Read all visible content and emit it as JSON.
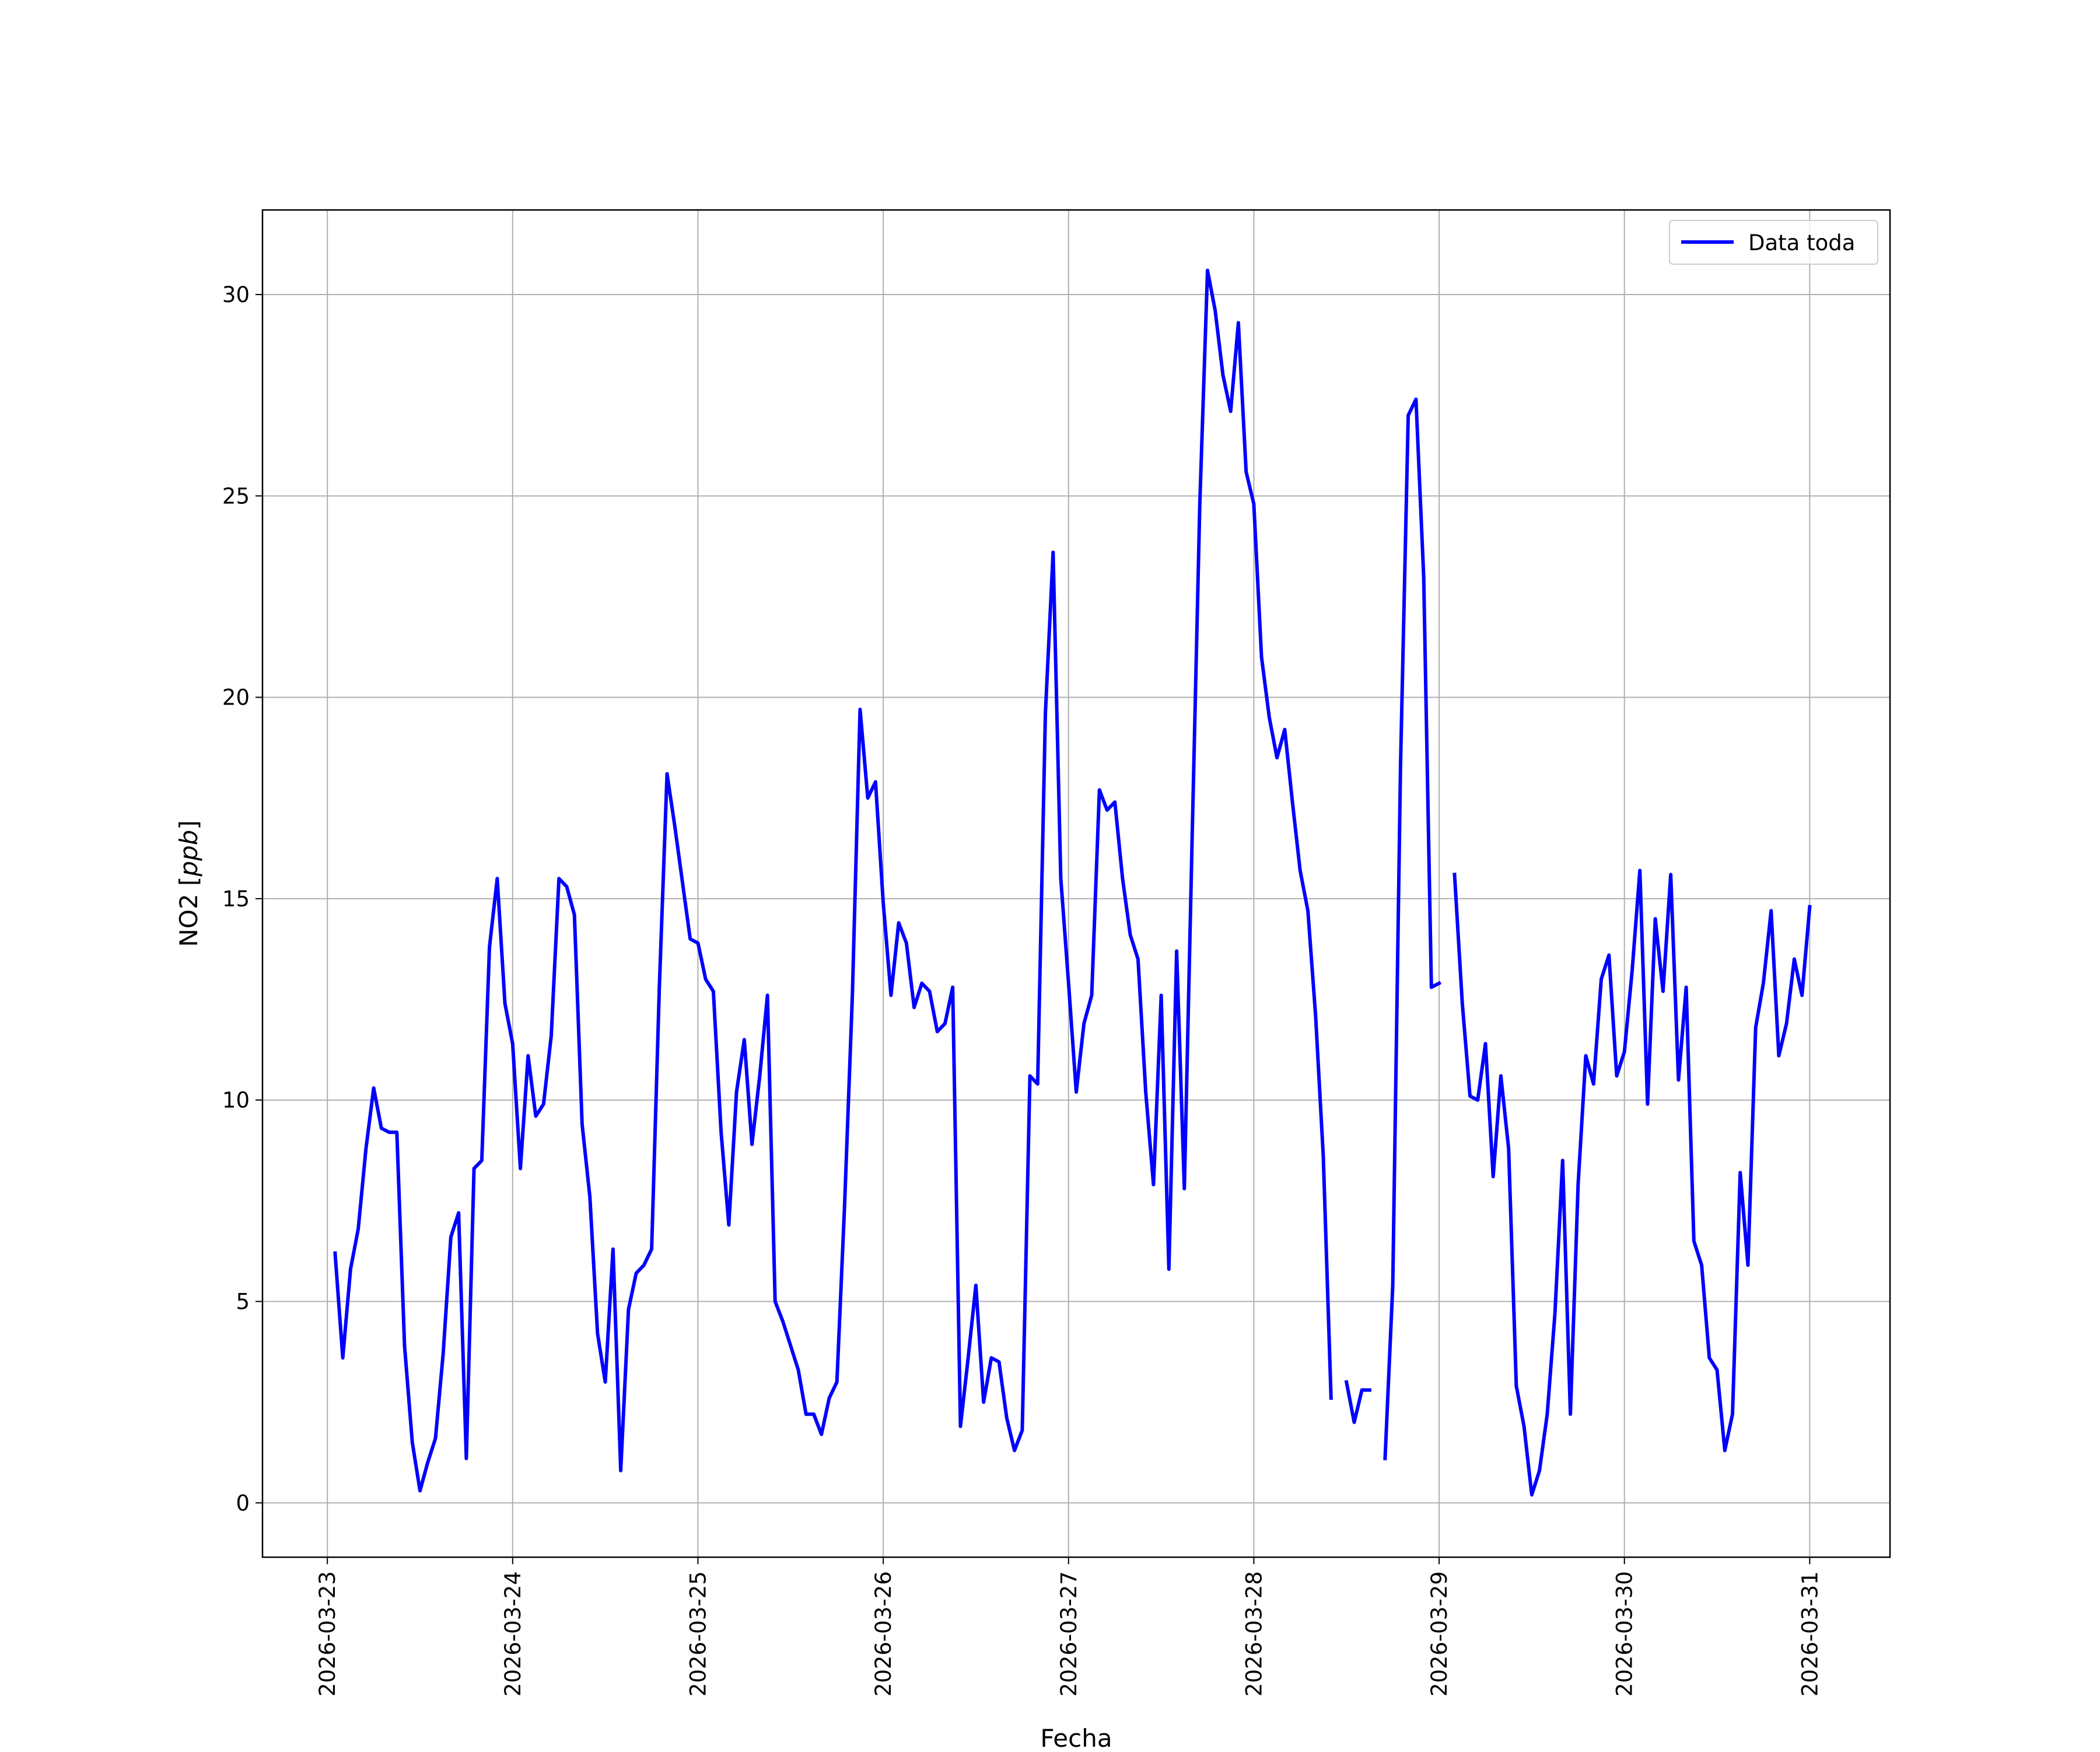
{
  "chart_data": {
    "type": "line",
    "xlabel": "Fecha",
    "ylabel": "NO2 [ppb]",
    "ylabel_parts": {
      "prefix": "NO2 [",
      "unit": "ppb",
      "suffix": "]"
    },
    "xlim": [
      "2026-03-22T15:36",
      "2026-03-31T10:24"
    ],
    "ylim": [
      -1.35,
      32.1
    ],
    "x_ticks": [
      "2026-03-23",
      "2026-03-24",
      "2026-03-25",
      "2026-03-26",
      "2026-03-27",
      "2026-03-28",
      "2026-03-29",
      "2026-03-30",
      "2026-03-31"
    ],
    "y_ticks": [
      0,
      5,
      10,
      15,
      20,
      25,
      30
    ],
    "y_tick_labels": [
      "0",
      "5",
      "10",
      "15",
      "20",
      "25",
      "30"
    ],
    "grid": true,
    "legend_position": "top-right",
    "series": [
      {
        "name": "Data toda",
        "color": "#0000ff",
        "points": [
          [
            "2026-03-23T01:00",
            6.2
          ],
          [
            "2026-03-23T02:00",
            3.6
          ],
          [
            "2026-03-23T03:00",
            5.8
          ],
          [
            "2026-03-23T04:00",
            6.8
          ],
          [
            "2026-03-23T05:00",
            8.8
          ],
          [
            "2026-03-23T06:00",
            10.3
          ],
          [
            "2026-03-23T07:00",
            9.3
          ],
          [
            "2026-03-23T08:00",
            9.2
          ],
          [
            "2026-03-23T09:00",
            9.2
          ],
          [
            "2026-03-23T10:00",
            3.9
          ],
          [
            "2026-03-23T11:00",
            1.5
          ],
          [
            "2026-03-23T12:00",
            0.3
          ],
          [
            "2026-03-23T13:00",
            1.0
          ],
          [
            "2026-03-23T14:00",
            1.6
          ],
          [
            "2026-03-23T15:00",
            3.7
          ],
          [
            "2026-03-23T16:00",
            6.6
          ],
          [
            "2026-03-23T17:00",
            7.2
          ],
          [
            "2026-03-23T18:00",
            1.1
          ],
          [
            "2026-03-23T19:00",
            8.3
          ],
          [
            "2026-03-23T20:00",
            8.5
          ],
          [
            "2026-03-23T21:00",
            13.8
          ],
          [
            "2026-03-23T22:00",
            15.5
          ],
          [
            "2026-03-23T23:00",
            12.4
          ],
          [
            "2026-03-24T00:00",
            11.4
          ],
          [
            "2026-03-24T01:00",
            8.3
          ],
          [
            "2026-03-24T02:00",
            11.1
          ],
          [
            "2026-03-24T03:00",
            9.6
          ],
          [
            "2026-03-24T04:00",
            9.9
          ],
          [
            "2026-03-24T05:00",
            11.6
          ],
          [
            "2026-03-24T06:00",
            15.5
          ],
          [
            "2026-03-24T07:00",
            15.3
          ],
          [
            "2026-03-24T08:00",
            14.6
          ],
          [
            "2026-03-24T09:00",
            9.4
          ],
          [
            "2026-03-24T10:00",
            7.6
          ],
          [
            "2026-03-24T11:00",
            4.2
          ],
          [
            "2026-03-24T12:00",
            3.0
          ],
          [
            "2026-03-24T13:00",
            6.3
          ],
          [
            "2026-03-24T14:00",
            0.8
          ],
          [
            "2026-03-24T15:00",
            4.8
          ],
          [
            "2026-03-24T16:00",
            5.7
          ],
          [
            "2026-03-24T17:00",
            5.9
          ],
          [
            "2026-03-24T18:00",
            6.3
          ],
          [
            "2026-03-24T19:00",
            12.8
          ],
          [
            "2026-03-24T20:00",
            18.1
          ],
          [
            "2026-03-24T21:00",
            16.8
          ],
          [
            "2026-03-24T22:00",
            15.4
          ],
          [
            "2026-03-24T23:00",
            14.0
          ],
          [
            "2026-03-25T00:00",
            13.9
          ],
          [
            "2026-03-25T01:00",
            13.0
          ],
          [
            "2026-03-25T02:00",
            12.7
          ],
          [
            "2026-03-25T03:00",
            9.2
          ],
          [
            "2026-03-25T04:00",
            6.9
          ],
          [
            "2026-03-25T05:00",
            10.2
          ],
          [
            "2026-03-25T06:00",
            11.5
          ],
          [
            "2026-03-25T07:00",
            8.9
          ],
          [
            "2026-03-25T08:00",
            10.6
          ],
          [
            "2026-03-25T09:00",
            12.6
          ],
          [
            "2026-03-25T10:00",
            5.0
          ],
          [
            "2026-03-25T11:00",
            4.5
          ],
          [
            "2026-03-25T12:00",
            3.9
          ],
          [
            "2026-03-25T13:00",
            3.3
          ],
          [
            "2026-03-25T14:00",
            2.2
          ],
          [
            "2026-03-25T15:00",
            2.2
          ],
          [
            "2026-03-25T16:00",
            1.7
          ],
          [
            "2026-03-25T17:00",
            2.6
          ],
          [
            "2026-03-25T18:00",
            3.0
          ],
          [
            "2026-03-25T19:00",
            7.4
          ],
          [
            "2026-03-25T20:00",
            12.6
          ],
          [
            "2026-03-25T21:00",
            19.7
          ],
          [
            "2026-03-25T22:00",
            17.5
          ],
          [
            "2026-03-25T23:00",
            17.9
          ],
          [
            "2026-03-26T00:00",
            14.9
          ],
          [
            "2026-03-26T01:00",
            12.6
          ],
          [
            "2026-03-26T02:00",
            14.4
          ],
          [
            "2026-03-26T03:00",
            13.9
          ],
          [
            "2026-03-26T04:00",
            12.3
          ],
          [
            "2026-03-26T05:00",
            12.9
          ],
          [
            "2026-03-26T06:00",
            12.7
          ],
          [
            "2026-03-26T07:00",
            11.7
          ],
          [
            "2026-03-26T08:00",
            11.9
          ],
          [
            "2026-03-26T09:00",
            12.8
          ],
          [
            "2026-03-26T10:00",
            1.9
          ],
          [
            "2026-03-26T11:00",
            3.6
          ],
          [
            "2026-03-26T12:00",
            5.4
          ],
          [
            "2026-03-26T13:00",
            2.5
          ],
          [
            "2026-03-26T14:00",
            3.6
          ],
          [
            "2026-03-26T15:00",
            3.5
          ],
          [
            "2026-03-26T16:00",
            2.1
          ],
          [
            "2026-03-26T17:00",
            1.3
          ],
          [
            "2026-03-26T18:00",
            1.8
          ],
          [
            "2026-03-26T19:00",
            10.6
          ],
          [
            "2026-03-26T20:00",
            10.4
          ],
          [
            "2026-03-26T21:00",
            19.6
          ],
          [
            "2026-03-26T22:00",
            23.6
          ],
          [
            "2026-03-26T23:00",
            15.5
          ],
          [
            "2026-03-27T00:00",
            12.9
          ],
          [
            "2026-03-27T01:00",
            10.2
          ],
          [
            "2026-03-27T02:00",
            11.9
          ],
          [
            "2026-03-27T03:00",
            12.6
          ],
          [
            "2026-03-27T04:00",
            17.7
          ],
          [
            "2026-03-27T05:00",
            17.2
          ],
          [
            "2026-03-27T06:00",
            17.4
          ],
          [
            "2026-03-27T07:00",
            15.5
          ],
          [
            "2026-03-27T08:00",
            14.1
          ],
          [
            "2026-03-27T09:00",
            13.5
          ],
          [
            "2026-03-27T10:00",
            10.2
          ],
          [
            "2026-03-27T11:00",
            7.9
          ],
          [
            "2026-03-27T12:00",
            12.6
          ],
          [
            "2026-03-27T13:00",
            5.8
          ],
          [
            "2026-03-27T14:00",
            13.7
          ],
          [
            "2026-03-27T15:00",
            7.8
          ],
          [
            "2026-03-27T16:00",
            16.4
          ],
          [
            "2026-03-27T17:00",
            24.8
          ],
          [
            "2026-03-27T18:00",
            30.6
          ],
          [
            "2026-03-27T19:00",
            29.6
          ],
          [
            "2026-03-27T20:00",
            28.0
          ],
          [
            "2026-03-27T21:00",
            27.1
          ],
          [
            "2026-03-27T22:00",
            29.3
          ],
          [
            "2026-03-27T23:00",
            25.6
          ],
          [
            "2026-03-28T00:00",
            24.8
          ],
          [
            "2026-03-28T01:00",
            21.0
          ],
          [
            "2026-03-28T02:00",
            19.5
          ],
          [
            "2026-03-28T03:00",
            18.5
          ],
          [
            "2026-03-28T04:00",
            19.2
          ],
          [
            "2026-03-28T05:00",
            17.4
          ],
          [
            "2026-03-28T06:00",
            15.7
          ],
          [
            "2026-03-28T07:00",
            14.7
          ],
          [
            "2026-03-28T08:00",
            12.1
          ],
          [
            "2026-03-28T09:00",
            8.6
          ],
          [
            "2026-03-28T10:00",
            2.6
          ],
          null,
          [
            "2026-03-28T12:00",
            3.0
          ],
          [
            "2026-03-28T13:00",
            2.0
          ],
          [
            "2026-03-28T14:00",
            2.8
          ],
          [
            "2026-03-28T15:00",
            2.8
          ],
          null,
          [
            "2026-03-28T17:00",
            1.1
          ],
          [
            "2026-03-28T18:00",
            5.4
          ],
          [
            "2026-03-28T19:00",
            18.3
          ],
          [
            "2026-03-28T20:00",
            27.0
          ],
          [
            "2026-03-28T21:00",
            27.4
          ],
          [
            "2026-03-28T22:00",
            23.0
          ],
          [
            "2026-03-28T23:00",
            12.8
          ],
          [
            "2026-03-29T00:00",
            12.9
          ],
          null,
          [
            "2026-03-29T02:00",
            15.6
          ],
          [
            "2026-03-29T03:00",
            12.4
          ],
          [
            "2026-03-29T04:00",
            10.1
          ],
          [
            "2026-03-29T05:00",
            10.0
          ],
          [
            "2026-03-29T06:00",
            11.4
          ],
          [
            "2026-03-29T07:00",
            8.1
          ],
          [
            "2026-03-29T08:00",
            10.6
          ],
          [
            "2026-03-29T09:00",
            8.8
          ],
          [
            "2026-03-29T10:00",
            2.9
          ],
          [
            "2026-03-29T11:00",
            1.9
          ],
          [
            "2026-03-29T12:00",
            0.2
          ],
          [
            "2026-03-29T13:00",
            0.8
          ],
          [
            "2026-03-29T14:00",
            2.2
          ],
          [
            "2026-03-29T15:00",
            4.7
          ],
          [
            "2026-03-29T16:00",
            8.5
          ],
          [
            "2026-03-29T17:00",
            2.2
          ],
          [
            "2026-03-29T18:00",
            7.9
          ],
          [
            "2026-03-29T19:00",
            11.1
          ],
          [
            "2026-03-29T20:00",
            10.4
          ],
          [
            "2026-03-29T21:00",
            13.0
          ],
          [
            "2026-03-29T22:00",
            13.6
          ],
          [
            "2026-03-29T23:00",
            10.6
          ],
          [
            "2026-03-30T00:00",
            11.2
          ],
          [
            "2026-03-30T01:00",
            13.2
          ],
          [
            "2026-03-30T02:00",
            15.7
          ],
          [
            "2026-03-30T03:00",
            9.9
          ],
          [
            "2026-03-30T04:00",
            14.5
          ],
          [
            "2026-03-30T05:00",
            12.7
          ],
          [
            "2026-03-30T06:00",
            15.6
          ],
          [
            "2026-03-30T07:00",
            10.5
          ],
          [
            "2026-03-30T08:00",
            12.8
          ],
          [
            "2026-03-30T09:00",
            6.5
          ],
          [
            "2026-03-30T10:00",
            5.9
          ],
          [
            "2026-03-30T11:00",
            3.6
          ],
          [
            "2026-03-30T12:00",
            3.3
          ],
          [
            "2026-03-30T13:00",
            1.3
          ],
          [
            "2026-03-30T14:00",
            2.2
          ],
          [
            "2026-03-30T15:00",
            8.2
          ],
          [
            "2026-03-30T16:00",
            5.9
          ],
          [
            "2026-03-30T17:00",
            11.8
          ],
          [
            "2026-03-30T18:00",
            12.9
          ],
          [
            "2026-03-30T19:00",
            14.7
          ],
          [
            "2026-03-30T20:00",
            11.1
          ],
          [
            "2026-03-30T21:00",
            11.9
          ],
          [
            "2026-03-30T22:00",
            13.5
          ],
          [
            "2026-03-30T23:00",
            12.6
          ],
          [
            "2026-03-31T00:00",
            14.8
          ]
        ]
      }
    ]
  }
}
